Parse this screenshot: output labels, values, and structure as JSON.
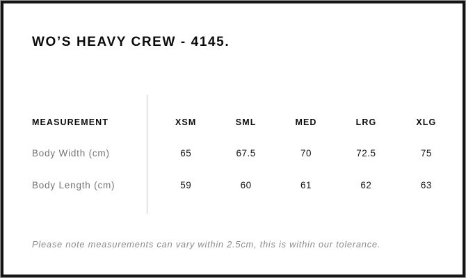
{
  "page": {
    "title": "WO’S HEAVY CREW - 4145."
  },
  "size_table": {
    "header_label": "MEASUREMENT",
    "columns": [
      "XSM",
      "SML",
      "MED",
      "LRG",
      "XLG"
    ],
    "rows": [
      {
        "label": "Body Width (cm)",
        "values": [
          "65",
          "67.5",
          "70",
          "72.5",
          "75"
        ]
      },
      {
        "label": "Body Length (cm)",
        "values": [
          "59",
          "60",
          "61",
          "62",
          "63"
        ]
      }
    ]
  },
  "note": "Please note measurements can vary within 2.5cm, this is within our tolerance.",
  "colors": {
    "frame_border": "#141414",
    "divider": "#c6c6c6",
    "text_primary": "#0d0d0d",
    "text_muted": "#757575",
    "note_text": "#8c8c8c"
  }
}
